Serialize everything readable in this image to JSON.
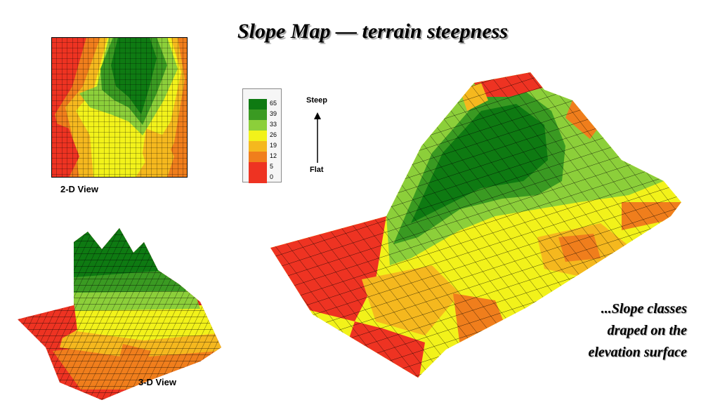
{
  "title": "Slope Map — terrain steepness",
  "captions": {
    "view2d": "2-D View",
    "view3d": "3-D View"
  },
  "legend": {
    "classes": [
      {
        "label": "65",
        "color": "#0e7a12"
      },
      {
        "label": "39",
        "color": "#3a9a22"
      },
      {
        "label": "33",
        "color": "#8ccf3a"
      },
      {
        "label": "26",
        "color": "#f2f21a"
      },
      {
        "label": "19",
        "color": "#f5b81e"
      },
      {
        "label": "12",
        "color": "#f07e1c"
      },
      {
        "label": "5",
        "color": "#ee3322"
      },
      {
        "label": "0",
        "color": "#ee3322"
      }
    ],
    "top_label": "Steep",
    "bottom_label": "Flat"
  },
  "note": {
    "lines": [
      "...Slope classes",
      "draped on the",
      "elevation surface"
    ]
  }
}
